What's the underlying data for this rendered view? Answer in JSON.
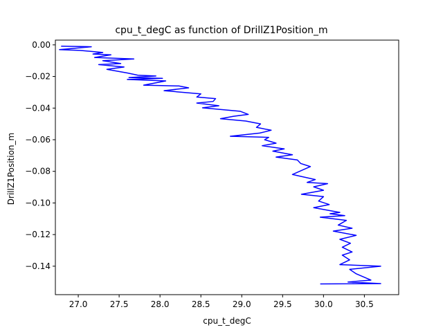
{
  "chart_data": {
    "type": "line",
    "title": "cpu_t_degC as function of DrillZ1Position_m",
    "xlabel": "cpu_t_degC",
    "ylabel": "DrillZ1Position_m",
    "xlim": [
      26.72,
      30.92
    ],
    "ylim": [
      -0.158,
      0.003
    ],
    "xticks": [
      27.0,
      27.5,
      28.0,
      28.5,
      29.0,
      29.5,
      30.0,
      30.5
    ],
    "xtick_labels": [
      "27.0",
      "27.5",
      "28.0",
      "28.5",
      "29.0",
      "29.5",
      "30.0",
      "30.5"
    ],
    "yticks": [
      0.0,
      -0.02,
      -0.04,
      -0.06,
      -0.08,
      -0.1,
      -0.12,
      -0.14
    ],
    "ytick_labels": [
      "0.00",
      "−0.02",
      "−0.04",
      "−0.06",
      "−0.08",
      "−0.10",
      "−0.12",
      "−0.14"
    ],
    "grid": false,
    "series": [
      {
        "color": "#0000ff",
        "points": [
          [
            26.79,
            -0.0008
          ],
          [
            27.16,
            -0.0012
          ],
          [
            26.77,
            -0.003
          ],
          [
            27.02,
            -0.0035
          ],
          [
            27.3,
            -0.0048
          ],
          [
            27.18,
            -0.0058
          ],
          [
            27.4,
            -0.0063
          ],
          [
            27.2,
            -0.008
          ],
          [
            27.68,
            -0.0089
          ],
          [
            27.3,
            -0.01
          ],
          [
            27.52,
            -0.0118
          ],
          [
            27.25,
            -0.0125
          ],
          [
            27.56,
            -0.014
          ],
          [
            27.35,
            -0.0155
          ],
          [
            27.6,
            -0.0178
          ],
          [
            27.73,
            -0.0192
          ],
          [
            27.95,
            -0.0197
          ],
          [
            27.62,
            -0.0207
          ],
          [
            28.03,
            -0.0212
          ],
          [
            27.6,
            -0.0219
          ],
          [
            28.07,
            -0.0228
          ],
          [
            27.8,
            -0.0255
          ],
          [
            28.23,
            -0.026
          ],
          [
            28.35,
            -0.0272
          ],
          [
            28.05,
            -0.029
          ],
          [
            28.5,
            -0.031
          ],
          [
            28.45,
            -0.033
          ],
          [
            28.68,
            -0.034
          ],
          [
            28.65,
            -0.0358
          ],
          [
            28.45,
            -0.0368
          ],
          [
            28.72,
            -0.0385
          ],
          [
            28.52,
            -0.0398
          ],
          [
            28.98,
            -0.042
          ],
          [
            29.08,
            -0.044
          ],
          [
            28.9,
            -0.0452
          ],
          [
            28.74,
            -0.0467
          ],
          [
            29.05,
            -0.0482
          ],
          [
            29.23,
            -0.05
          ],
          [
            29.18,
            -0.0522
          ],
          [
            29.36,
            -0.054
          ],
          [
            29.22,
            -0.0558
          ],
          [
            28.86,
            -0.0578
          ],
          [
            29.33,
            -0.0585
          ],
          [
            29.28,
            -0.06
          ],
          [
            29.42,
            -0.0622
          ],
          [
            29.25,
            -0.0638
          ],
          [
            29.52,
            -0.0658
          ],
          [
            29.38,
            -0.0672
          ],
          [
            29.62,
            -0.0695
          ],
          [
            29.42,
            -0.071
          ],
          [
            29.68,
            -0.0728
          ],
          [
            29.72,
            -0.075
          ],
          [
            29.84,
            -0.077
          ],
          [
            29.76,
            -0.0788
          ],
          [
            29.62,
            -0.082
          ],
          [
            29.9,
            -0.0852
          ],
          [
            29.8,
            -0.087
          ],
          [
            30.05,
            -0.0878
          ],
          [
            29.88,
            -0.0898
          ],
          [
            30.0,
            -0.092
          ],
          [
            29.73,
            -0.0945
          ],
          [
            30.0,
            -0.096
          ],
          [
            29.94,
            -0.0988
          ],
          [
            30.07,
            -0.101
          ],
          [
            29.88,
            -0.103
          ],
          [
            30.2,
            -0.106
          ],
          [
            30.08,
            -0.1068
          ],
          [
            30.26,
            -0.108
          ],
          [
            29.96,
            -0.109
          ],
          [
            30.28,
            -0.111
          ],
          [
            30.18,
            -0.114
          ],
          [
            30.35,
            -0.116
          ],
          [
            30.12,
            -0.1178
          ],
          [
            30.4,
            -0.1205
          ],
          [
            30.2,
            -0.123
          ],
          [
            30.33,
            -0.1255
          ],
          [
            30.23,
            -0.128
          ],
          [
            30.35,
            -0.131
          ],
          [
            30.23,
            -0.133
          ],
          [
            30.32,
            -0.136
          ],
          [
            30.2,
            -0.139
          ],
          [
            30.7,
            -0.14
          ],
          [
            30.32,
            -0.142
          ],
          [
            30.4,
            -0.1448
          ],
          [
            30.58,
            -0.1488
          ],
          [
            30.3,
            -0.15
          ],
          [
            30.7,
            -0.151
          ],
          [
            29.96,
            -0.1512
          ]
        ]
      }
    ]
  }
}
